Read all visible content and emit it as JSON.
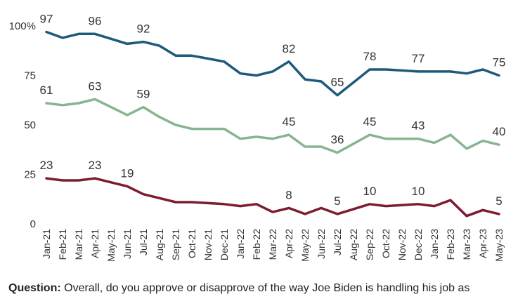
{
  "chart_data": {
    "type": "line",
    "x": [
      "Jan-21",
      "Feb-21",
      "Mar-21",
      "Apr-21",
      "May-21",
      "Jun-21",
      "Jul-21",
      "Aug-21",
      "Sep-21",
      "Oct-21",
      "Nov-21",
      "Dec-21",
      "Jan-22",
      "Feb-22",
      "Mar-22",
      "Apr-22",
      "May-22",
      "Jun-22",
      "Jul-22",
      "Aug-22",
      "Sep-22",
      "Oct-22",
      "Nov-22",
      "Dec-22",
      "Jan-23",
      "Feb-23",
      "Mar-23",
      "Apr-23",
      "May-23"
    ],
    "y_ticks": [
      "100%",
      "75",
      "50",
      "25",
      "0"
    ],
    "ylim": [
      0,
      100
    ],
    "grid": false,
    "series": [
      {
        "color": "#1f5a7a",
        "values": [
          97,
          94,
          96,
          96,
          93.5,
          91,
          92,
          90,
          85,
          85,
          83.5,
          82,
          76,
          75,
          77,
          82,
          73,
          72,
          65,
          71.5,
          78,
          78,
          77.5,
          77,
          77,
          77,
          76,
          78,
          75
        ],
        "labels": [
          {
            "index": 0,
            "text": "97"
          },
          {
            "index": 3,
            "text": "96"
          },
          {
            "index": 6,
            "text": "92"
          },
          {
            "index": 15,
            "text": "82"
          },
          {
            "index": 18,
            "text": "65"
          },
          {
            "index": 20,
            "text": "78"
          },
          {
            "index": 23,
            "text": "77"
          },
          {
            "index": 28,
            "text": "75"
          }
        ]
      },
      {
        "color": "#86b58f",
        "values": [
          61,
          60,
          61,
          63,
          59,
          55,
          59,
          54,
          50,
          48,
          48,
          48,
          43,
          44,
          43,
          45,
          39,
          39,
          36,
          40.5,
          45,
          43,
          43,
          43,
          41,
          45,
          38,
          42,
          40
        ],
        "labels": [
          {
            "index": 0,
            "text": "61"
          },
          {
            "index": 3,
            "text": "63"
          },
          {
            "index": 6,
            "text": "59"
          },
          {
            "index": 15,
            "text": "45"
          },
          {
            "index": 18,
            "text": "36"
          },
          {
            "index": 20,
            "text": "45"
          },
          {
            "index": 23,
            "text": "43"
          },
          {
            "index": 28,
            "text": "40"
          }
        ]
      },
      {
        "color": "#7d1c2e",
        "values": [
          23,
          22,
          22,
          23,
          21,
          19,
          15,
          13,
          11,
          11,
          10.5,
          10,
          9,
          10,
          6,
          8,
          5,
          8,
          5,
          7.5,
          10,
          9,
          9.5,
          10,
          9,
          12,
          4,
          7,
          5
        ],
        "labels": [
          {
            "index": 0,
            "text": "23"
          },
          {
            "index": 3,
            "text": "23"
          },
          {
            "index": 5,
            "text": "19"
          },
          {
            "index": 15,
            "text": "8"
          },
          {
            "index": 18,
            "text": "5"
          },
          {
            "index": 20,
            "text": "10"
          },
          {
            "index": 23,
            "text": "10"
          },
          {
            "index": 28,
            "text": "5"
          }
        ]
      }
    ]
  },
  "footer": {
    "question_label": "Question:",
    "question_text": " Overall, do you approve or disapprove of the way Joe Biden is handling his job as"
  }
}
